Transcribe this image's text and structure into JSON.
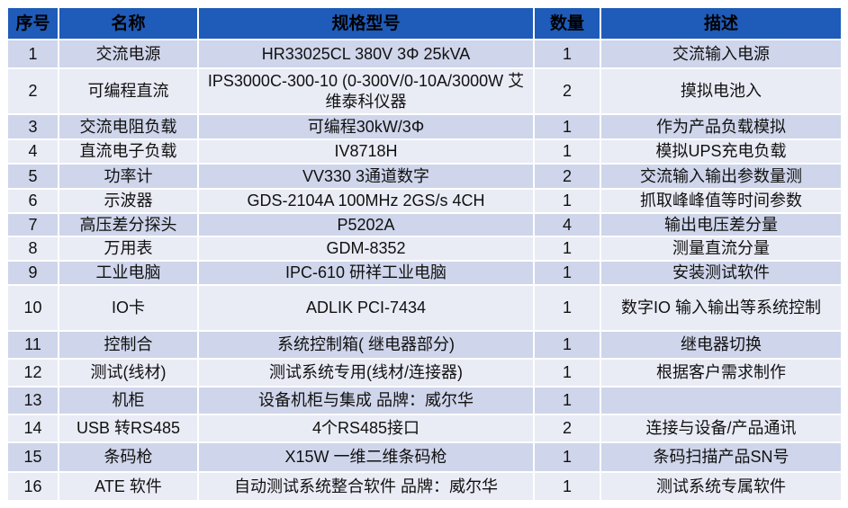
{
  "colors": {
    "header": "#1f5bb8",
    "row_dark": "#cfd5ea",
    "row_light": "#e9ebf5"
  },
  "headers": [
    "序号",
    "名称",
    "规格型号",
    "数量",
    "描述"
  ],
  "rows": [
    {
      "no": "1",
      "name": "交流电源",
      "spec": "HR33025CL 380V 3Φ 25kVA",
      "qty": "1",
      "desc": "交流输入电源"
    },
    {
      "no": "2",
      "name": "可编程直流",
      "spec": "IPS3000C-300-10 (0-300V/0-10A/3000W 艾维泰科仪器",
      "qty": "2",
      "desc": "摸拟电池入"
    },
    {
      "no": "3",
      "name": "交流电阻负载",
      "spec": "可编程30kW/3Φ",
      "qty": "1",
      "desc": "作为产品负载模拟"
    },
    {
      "no": "4",
      "name": "直流电子负载",
      "spec": "IV8718H",
      "qty": "1",
      "desc": "模拟UPS充电负载"
    },
    {
      "no": "5",
      "name": "功率计",
      "spec": "VV330 3通道数字",
      "qty": "2",
      "desc": "交流输入输出参数量测"
    },
    {
      "no": "6",
      "name": "示波器",
      "spec": "GDS-2104A 100MHz 2GS/s 4CH",
      "qty": "1",
      "desc": "抓取峰峰值等时间参数"
    },
    {
      "no": "7",
      "name": "高压差分探头",
      "spec": "P5202A",
      "qty": "4",
      "desc": "输出电压差分量"
    },
    {
      "no": "8",
      "name": "万用表",
      "spec": "GDM-8352",
      "qty": "1",
      "desc": "测量直流分量"
    },
    {
      "no": "9",
      "name": "工业电脑",
      "spec": "IPC-610 研祥工业电脑",
      "qty": "1",
      "desc": "安装测试软件"
    },
    {
      "no": "10",
      "name": "IO卡",
      "spec": "ADLIK PCI-7434",
      "qty": "1",
      "desc": "数字IO 输入输出等系统控制"
    },
    {
      "no": "11",
      "name": "控制合",
      "spec": "系统控制箱( 继电器部分)",
      "qty": "1",
      "desc": "继电器切换"
    },
    {
      "no": "12",
      "name": "测试(线材)",
      "spec": "测试系统专用(线材/连接器)",
      "qty": "1",
      "desc": "根据客户需求制作"
    },
    {
      "no": "13",
      "name": "机柜",
      "spec": "设备机柜与集成 品牌：威尔华",
      "qty": "1",
      "desc": ""
    },
    {
      "no": "14",
      "name": "USB 转RS485",
      "spec": "4个RS485接口",
      "qty": "2",
      "desc": "连接与设备/产品通讯"
    },
    {
      "no": "15",
      "name": "条码枪",
      "spec": "X15W 一维二维条码枪",
      "qty": "1",
      "desc": "条码扫描产品SN号"
    },
    {
      "no": "16",
      "name": "ATE 软件",
      "spec": "自动测试系统整合软件 品牌：威尔华",
      "qty": "1",
      "desc": "测试系统专属软件"
    }
  ]
}
